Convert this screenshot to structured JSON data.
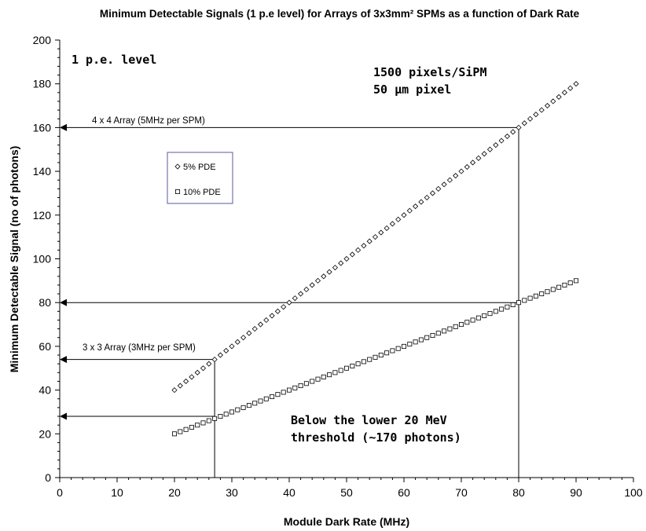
{
  "chart_data": {
    "type": "scatter",
    "title": "Minimum Detectable Signals (1 p.e level) for Arrays of 3x3mm² SPMs as a function of Dark Rate",
    "xlabel": "Module Dark Rate (MHz)",
    "ylabel": "Minimum Detectable Signal (no of photons)",
    "xlim": [
      0,
      100
    ],
    "ylim": [
      0,
      200
    ],
    "x_ticks": [
      "0",
      "10",
      "20",
      "30",
      "40",
      "50",
      "60",
      "70",
      "80",
      "90",
      "100"
    ],
    "y_ticks": [
      "0",
      "20",
      "40",
      "60",
      "80",
      "100",
      "120",
      "140",
      "160",
      "180",
      "200"
    ],
    "grid": false,
    "legend_position": "top-left",
    "series": [
      {
        "name": "5% PDE",
        "marker": "diamond",
        "x_start": 20,
        "x_end": 90,
        "x_step": 1,
        "y_start": 40,
        "y_end": 180
      },
      {
        "name": "10% PDE",
        "marker": "square",
        "x_start": 20,
        "x_end": 90,
        "x_step": 1,
        "y_start": 20,
        "y_end": 90
      }
    ],
    "reference_lines": [
      {
        "label": "4 x 4 Array (5MHz per SPM)",
        "x": 80,
        "y_values": [
          160,
          80
        ]
      },
      {
        "label": "3 x 3 Array (3MHz per SPM)",
        "x": 27,
        "y_values": [
          54,
          28
        ]
      }
    ],
    "annotations": {
      "level": "1 p.e. level",
      "pixels_line1": "1500 pixels/SiPM",
      "pixels_line2": "50 μm pixel",
      "threshold_line1": "Below the lower 20 MeV",
      "threshold_line2": "threshold (~170 photons)"
    }
  }
}
